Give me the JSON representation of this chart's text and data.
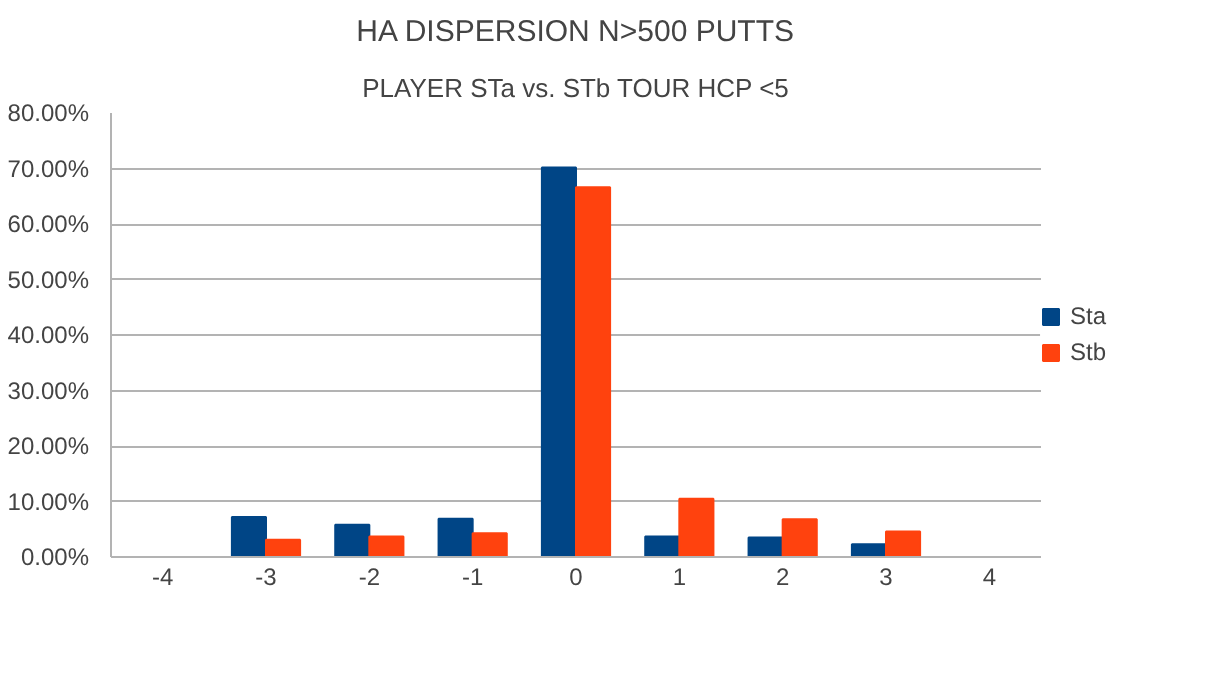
{
  "chart_data": {
    "type": "bar",
    "title": "HA DISPERSION N>500 PUTTS",
    "subtitle": "PLAYER STa vs. STb TOUR HCP <5",
    "categories": [
      "-4",
      "-3",
      "-2",
      "-1",
      "0",
      "1",
      "2",
      "3",
      "4"
    ],
    "series": [
      {
        "name": "Sta",
        "color": "#004586",
        "values": [
          null,
          7.2,
          5.8,
          6.9,
          70.2,
          3.7,
          3.5,
          2.3,
          null
        ]
      },
      {
        "name": "Stb",
        "color": "#ff420e",
        "values": [
          null,
          3.1,
          3.7,
          4.3,
          66.6,
          10.5,
          6.8,
          4.6,
          null
        ]
      }
    ],
    "ylim": [
      0,
      80
    ],
    "yticks": [
      {
        "value": 0,
        "label": "0.00%"
      },
      {
        "value": 10,
        "label": "10.00%"
      },
      {
        "value": 20,
        "label": "20.00%"
      },
      {
        "value": 30,
        "label": "30.00%"
      },
      {
        "value": 40,
        "label": "40.00%"
      },
      {
        "value": 50,
        "label": "50.00%"
      },
      {
        "value": 60,
        "label": "60.00%"
      },
      {
        "value": 70,
        "label": "70.00%"
      },
      {
        "value": 80,
        "label": "80.00%"
      }
    ],
    "grid": "y",
    "legend": "right"
  }
}
